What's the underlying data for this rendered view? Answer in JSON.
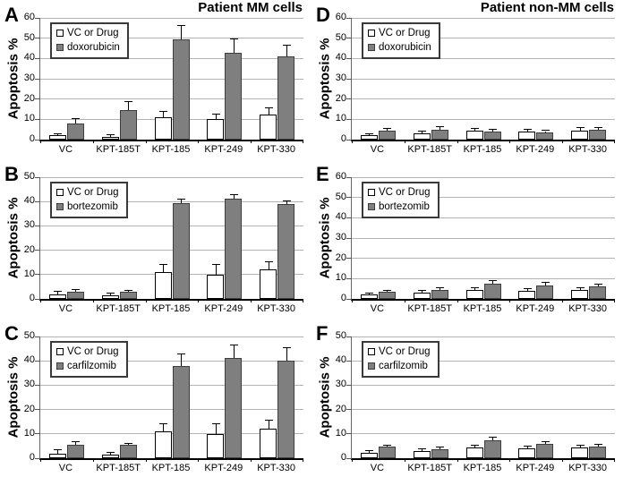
{
  "titles": {
    "left": "Patient MM cells",
    "right": "Patient non-MM cells"
  },
  "axis": {
    "ylabel": "Apoptosis %",
    "ytick_step": 10
  },
  "colors": {
    "control_bar_fill": "#ffffff",
    "control_bar_border": "#000000",
    "drug_bar_fill": "#7f7f7f",
    "drug_bar_border": "#3d3d3d",
    "gridline": "#b3b3b3",
    "axis_line": "#000000",
    "error_bar": "#000000"
  },
  "categories": [
    "VC",
    "KPT-185T",
    "KPT-185",
    "KPT-249",
    "KPT-330"
  ],
  "chart_data": [
    {
      "type": "bar",
      "panel": "A",
      "group": "Patient MM cells",
      "drug": "doxorubicin",
      "ylabel": "Apoptosis %",
      "ylim": [
        0,
        60
      ],
      "categories": [
        "VC",
        "KPT-185T",
        "KPT-185",
        "KPT-249",
        "KPT-330"
      ],
      "legend_position": "top-left",
      "series": [
        {
          "name": "VC or Drug",
          "values": [
            2,
            1.5,
            11,
            10,
            12.5
          ],
          "errors": [
            0.6,
            0.5,
            2.5,
            2.5,
            3
          ]
        },
        {
          "name": "doxorubicin",
          "values": [
            8,
            14.5,
            49.5,
            43,
            41
          ],
          "errors": [
            2.2,
            4,
            6.5,
            6.5,
            5.5
          ]
        }
      ]
    },
    {
      "type": "bar",
      "panel": "D",
      "group": "Patient non-MM cells",
      "drug": "doxorubicin",
      "ylabel": "Apoptosis %",
      "ylim": [
        0,
        60
      ],
      "categories": [
        "VC",
        "KPT-185T",
        "KPT-185",
        "KPT-249",
        "KPT-330"
      ],
      "legend_position": "top-left",
      "series": [
        {
          "name": "VC or Drug",
          "values": [
            2,
            3,
            4.5,
            4,
            4.5
          ],
          "errors": [
            0.7,
            1,
            1,
            1,
            1.2
          ]
        },
        {
          "name": "doxorubicin",
          "values": [
            4.5,
            5,
            4,
            3.5,
            4.7
          ],
          "errors": [
            0.7,
            1,
            1,
            0.7,
            1.2
          ]
        }
      ]
    },
    {
      "type": "bar",
      "panel": "B",
      "group": "Patient MM cells",
      "drug": "bortezomib",
      "ylabel": "Apoptosis %",
      "ylim": [
        0,
        50
      ],
      "categories": [
        "VC",
        "KPT-185T",
        "KPT-185",
        "KPT-249",
        "KPT-330"
      ],
      "legend_position": "top-left",
      "series": [
        {
          "name": "VC or Drug",
          "values": [
            2,
            1.5,
            11,
            10,
            12
          ],
          "errors": [
            1,
            0.7,
            3,
            4,
            3.2
          ]
        },
        {
          "name": "bortezomib",
          "values": [
            3,
            2.8,
            39.5,
            41,
            39
          ],
          "errors": [
            0.5,
            0.5,
            1.2,
            1.5,
            1
          ]
        }
      ]
    },
    {
      "type": "bar",
      "panel": "E",
      "group": "Patient non-MM cells",
      "drug": "bortezomib",
      "ylabel": "Apoptosis %",
      "ylim": [
        0,
        60
      ],
      "categories": [
        "VC",
        "KPT-185T",
        "KPT-185",
        "KPT-249",
        "KPT-330"
      ],
      "legend_position": "top-left",
      "series": [
        {
          "name": "VC or Drug",
          "values": [
            2.2,
            3,
            4.5,
            4,
            4.2
          ],
          "errors": [
            0.6,
            0.8,
            0.8,
            1,
            1.2
          ]
        },
        {
          "name": "bortezomib",
          "values": [
            3.5,
            4.5,
            7.5,
            6.7,
            6.2
          ],
          "errors": [
            0.6,
            0.7,
            1.2,
            1.2,
            1
          ]
        }
      ]
    },
    {
      "type": "bar",
      "panel": "C",
      "group": "Patient MM cells",
      "drug": "carfilzomib",
      "ylabel": "Apoptosis %",
      "ylim": [
        0,
        50
      ],
      "categories": [
        "VC",
        "KPT-185T",
        "KPT-185",
        "KPT-249",
        "KPT-330"
      ],
      "legend_position": "top-left",
      "series": [
        {
          "name": "VC or Drug",
          "values": [
            2,
            1.5,
            11,
            10,
            12.2
          ],
          "errors": [
            1.3,
            0.8,
            3,
            4,
            3.2
          ]
        },
        {
          "name": "carfilzomib",
          "values": [
            5.6,
            5.5,
            38,
            41,
            40
          ],
          "errors": [
            1.2,
            0.5,
            4.5,
            5.5,
            5.2
          ]
        }
      ]
    },
    {
      "type": "bar",
      "panel": "F",
      "group": "Patient non-MM cells",
      "drug": "carfilzomib",
      "ylabel": "Apoptosis %",
      "ylim": [
        0,
        50
      ],
      "categories": [
        "VC",
        "KPT-185T",
        "KPT-185",
        "KPT-249",
        "KPT-330"
      ],
      "legend_position": "top-left",
      "series": [
        {
          "name": "VC or Drug",
          "values": [
            2.3,
            3,
            4.5,
            4,
            4.3
          ],
          "errors": [
            0.8,
            0.8,
            0.8,
            0.8,
            1
          ]
        },
        {
          "name": "carfilzomib",
          "values": [
            4.8,
            3.8,
            7.3,
            5.8,
            4.8
          ],
          "errors": [
            0.4,
            0.6,
            1.3,
            1,
            0.8
          ]
        }
      ]
    }
  ]
}
